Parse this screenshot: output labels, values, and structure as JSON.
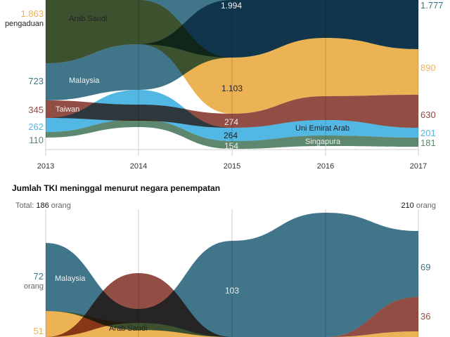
{
  "colors": {
    "arab_saudi": "#ecb355",
    "malaysia": "#41758a",
    "taiwan": "#924e44",
    "uni_emirat_arab": "#52b7e2",
    "singapura": "#5d876f",
    "axis": "#cccccc"
  },
  "chart_data": [
    {
      "type": "area",
      "subtype": "ranked stream (bump) chart",
      "x": [
        "2013",
        "2014",
        "2015",
        "2016",
        "2017"
      ],
      "unit_label": "pengaduan",
      "series": [
        {
          "name": "Arab Saudi",
          "values": [
            1863,
            null,
            1103,
            null,
            890
          ],
          "labels": [
            "1.863",
            null,
            "1.103",
            null,
            "890"
          ]
        },
        {
          "name": "Malaysia",
          "values": [
            723,
            null,
            1994,
            null,
            1777
          ],
          "labels": [
            "723",
            null,
            "1.994",
            null,
            "1.777"
          ]
        },
        {
          "name": "Taiwan",
          "values": [
            345,
            null,
            274,
            null,
            630
          ],
          "labels": [
            "345",
            null,
            "274",
            null,
            "630"
          ]
        },
        {
          "name": "Uni Emirat Arab",
          "values": [
            262,
            null,
            264,
            null,
            201
          ],
          "labels": [
            "262",
            null,
            "264",
            null,
            "201"
          ]
        },
        {
          "name": "Singapura",
          "values": [
            110,
            null,
            154,
            null,
            181
          ],
          "labels": [
            "110",
            null,
            "154",
            null,
            "181"
          ]
        }
      ],
      "grid": "vertical lines at each year",
      "legend": "inline labels"
    },
    {
      "type": "area",
      "subtype": "ranked stream (bump) chart",
      "title": "Jumlah TKI meninggal menurut negara penempatan",
      "total_prefix": "Total:",
      "total_start": "186",
      "total_end": "210",
      "unit_label": "orang",
      "series": [
        {
          "name": "Malaysia",
          "values": [
            72,
            null,
            103,
            null,
            69
          ],
          "labels": [
            "72",
            null,
            "103",
            null,
            "69"
          ]
        },
        {
          "name": "Arab Saudi",
          "values": [
            51,
            null,
            null,
            null,
            null
          ],
          "labels": [
            "51",
            null,
            null,
            null,
            null
          ]
        },
        {
          "values": [
            null,
            null,
            null,
            null,
            36
          ],
          "labels": [
            null,
            null,
            null,
            null,
            "36"
          ]
        }
      ],
      "grid": "vertical lines at each year",
      "legend": "inline labels"
    }
  ]
}
